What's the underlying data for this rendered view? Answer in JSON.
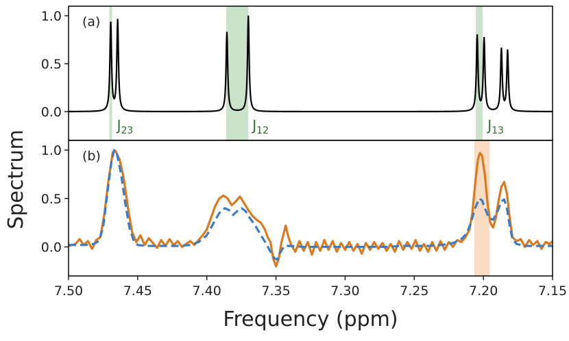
{
  "chart_data": {
    "type": "line",
    "xlabel": "Frequency (ppm)",
    "ylabel": "Spectrum",
    "xlim": [
      7.5,
      7.15
    ],
    "x_ticks": [
      "7.50",
      "7.45",
      "7.40",
      "7.35",
      "7.30",
      "7.25",
      "7.20",
      "7.15"
    ],
    "x_tick_values": [
      7.5,
      7.45,
      7.4,
      7.35,
      7.3,
      7.25,
      7.2,
      7.15
    ],
    "panels": [
      {
        "label": "(a)",
        "ylim": [
          -0.3,
          1.1
        ],
        "y_ticks": [
          "1.0",
          "0.5",
          "0.0"
        ],
        "y_tick_values": [
          1.0,
          0.5,
          0.0
        ],
        "peak_width": 0.0007,
        "peaks": [
          {
            "x": 7.4695,
            "height": 0.92
          },
          {
            "x": 7.4645,
            "height": 0.95
          },
          {
            "x": 7.3855,
            "height": 0.83
          },
          {
            "x": 7.37,
            "height": 1.0
          },
          {
            "x": 7.2045,
            "height": 0.79
          },
          {
            "x": 7.1995,
            "height": 0.76
          },
          {
            "x": 7.187,
            "height": 0.65
          },
          {
            "x": 7.1825,
            "height": 0.63
          }
        ],
        "series_color": "#000000",
        "bands": [
          {
            "from": 7.4705,
            "to": 7.4685,
            "label": "J",
            "sub": "23",
            "label_x": 7.465
          },
          {
            "from": 7.386,
            "to": 7.37,
            "label": "J",
            "sub": "12",
            "label_x": 7.367
          },
          {
            "from": 7.2055,
            "to": 7.2005,
            "label": "J",
            "sub": "13",
            "label_x": 7.197
          }
        ],
        "band_color": "#2e8b2e",
        "label_color": "#2d6e2d"
      },
      {
        "label": "(b)",
        "ylim": [
          -0.3,
          1.1
        ],
        "y_ticks": [
          "1.0",
          "0.5",
          "0.0"
        ],
        "y_tick_values": [
          1.0,
          0.5,
          0.0
        ],
        "series": [
          {
            "style": "solid",
            "color": "#d97a1f",
            "points": [
              [
                7.5,
                0.01
              ],
              [
                7.495,
                0.03
              ],
              [
                7.492,
                0.08
              ],
              [
                7.489,
                0.02
              ],
              [
                7.486,
                0.06
              ],
              [
                7.483,
                -0.02
              ],
              [
                7.48,
                0.07
              ],
              [
                7.477,
                0.1
              ],
              [
                7.474,
                0.35
              ],
              [
                7.471,
                0.7
              ],
              [
                7.468,
                0.98
              ],
              [
                7.466,
                0.99
              ],
              [
                7.463,
                0.9
              ],
              [
                7.46,
                0.7
              ],
              [
                7.457,
                0.4
              ],
              [
                7.454,
                0.15
              ],
              [
                7.451,
                0.05
              ],
              [
                7.448,
                0.12
              ],
              [
                7.445,
                0.02
              ],
              [
                7.442,
                0.09
              ],
              [
                7.439,
                0.04
              ],
              [
                7.436,
                -0.01
              ],
              [
                7.433,
                0.07
              ],
              [
                7.43,
                0.01
              ],
              [
                7.427,
                0.08
              ],
              [
                7.424,
                0.02
              ],
              [
                7.421,
                0.06
              ],
              [
                7.418,
                0.0
              ],
              [
                7.415,
                0.03
              ],
              [
                7.412,
                0.06
              ],
              [
                7.409,
                0.02
              ],
              [
                7.406,
                0.07
              ],
              [
                7.403,
                0.12
              ],
              [
                7.4,
                0.18
              ],
              [
                7.397,
                0.3
              ],
              [
                7.394,
                0.42
              ],
              [
                7.391,
                0.5
              ],
              [
                7.388,
                0.53
              ],
              [
                7.385,
                0.5
              ],
              [
                7.382,
                0.43
              ],
              [
                7.379,
                0.47
              ],
              [
                7.376,
                0.52
              ],
              [
                7.373,
                0.45
              ],
              [
                7.37,
                0.38
              ],
              [
                7.367,
                0.32
              ],
              [
                7.364,
                0.28
              ],
              [
                7.361,
                0.25
              ],
              [
                7.358,
                0.18
              ],
              [
                7.356,
                0.1
              ],
              [
                7.354,
                0.05
              ],
              [
                7.352,
                -0.12
              ],
              [
                7.35,
                -0.2
              ],
              [
                7.348,
                -0.12
              ],
              [
                7.346,
                0.05
              ],
              [
                7.343,
                0.22
              ],
              [
                7.341,
                0.1
              ],
              [
                7.339,
                0.02
              ],
              [
                7.336,
                -0.05
              ],
              [
                7.333,
                0.06
              ],
              [
                7.33,
                -0.04
              ],
              [
                7.327,
                0.05
              ],
              [
                7.324,
                -0.08
              ],
              [
                7.321,
                0.05
              ],
              [
                7.318,
                -0.04
              ],
              [
                7.315,
                0.07
              ],
              [
                7.312,
                -0.03
              ],
              [
                7.309,
                0.06
              ],
              [
                7.306,
                -0.05
              ],
              [
                7.303,
                0.04
              ],
              [
                7.3,
                -0.03
              ],
              [
                7.297,
                0.05
              ],
              [
                7.294,
                -0.04
              ],
              [
                7.291,
                0.03
              ],
              [
                7.288,
                -0.07
              ],
              [
                7.285,
                0.04
              ],
              [
                7.282,
                -0.03
              ],
              [
                7.279,
                0.05
              ],
              [
                7.276,
                -0.02
              ],
              [
                7.273,
                0.04
              ],
              [
                7.27,
                -0.04
              ],
              [
                7.267,
                0.03
              ],
              [
                7.264,
                -0.05
              ],
              [
                7.261,
                0.06
              ],
              [
                7.258,
                -0.03
              ],
              [
                7.255,
                0.05
              ],
              [
                7.252,
                -0.02
              ],
              [
                7.249,
                0.07
              ],
              [
                7.246,
                -0.04
              ],
              [
                7.243,
                0.03
              ],
              [
                7.24,
                -0.05
              ],
              [
                7.237,
                0.05
              ],
              [
                7.234,
                -0.04
              ],
              [
                7.231,
                0.06
              ],
              [
                7.228,
                -0.03
              ],
              [
                7.225,
                0.05
              ],
              [
                7.222,
                0.0
              ],
              [
                7.219,
                0.07
              ],
              [
                7.216,
                0.05
              ],
              [
                7.213,
                0.1
              ],
              [
                7.21,
                0.18
              ],
              [
                7.208,
                0.35
              ],
              [
                7.206,
                0.65
              ],
              [
                7.204,
                0.9
              ],
              [
                7.2025,
                0.97
              ],
              [
                7.201,
                0.94
              ],
              [
                7.199,
                0.75
              ],
              [
                7.197,
                0.45
              ],
              [
                7.195,
                0.25
              ],
              [
                7.193,
                0.2
              ],
              [
                7.191,
                0.3
              ],
              [
                7.189,
                0.48
              ],
              [
                7.187,
                0.62
              ],
              [
                7.185,
                0.67
              ],
              [
                7.183,
                0.55
              ],
              [
                7.181,
                0.3
              ],
              [
                7.179,
                0.1
              ],
              [
                7.176,
                0.06
              ],
              [
                7.173,
                0.08
              ],
              [
                7.17,
                0.0
              ],
              [
                7.167,
                0.07
              ],
              [
                7.164,
                0.02
              ],
              [
                7.161,
                0.06
              ],
              [
                7.158,
                -0.02
              ],
              [
                7.155,
                0.05
              ],
              [
                7.152,
                0.03
              ],
              [
                7.15,
                0.06
              ]
            ]
          },
          {
            "style": "dashed",
            "color": "#3d7cc4",
            "points": [
              [
                7.5,
                0.02
              ],
              [
                7.494,
                0.02
              ],
              [
                7.488,
                0.02
              ],
              [
                7.482,
                0.03
              ],
              [
                7.478,
                0.06
              ],
              [
                7.475,
                0.2
              ],
              [
                7.472,
                0.55
              ],
              [
                7.469,
                0.88
              ],
              [
                7.467,
                1.0
              ],
              [
                7.465,
                0.96
              ],
              [
                7.462,
                0.75
              ],
              [
                7.459,
                0.45
              ],
              [
                7.456,
                0.2
              ],
              [
                7.453,
                0.07
              ],
              [
                7.45,
                0.02
              ],
              [
                7.444,
                0.01
              ],
              [
                7.436,
                0.01
              ],
              [
                7.428,
                0.01
              ],
              [
                7.42,
                0.01
              ],
              [
                7.412,
                0.02
              ],
              [
                7.406,
                0.05
              ],
              [
                7.4,
                0.12
              ],
              [
                7.395,
                0.25
              ],
              [
                7.391,
                0.35
              ],
              [
                7.387,
                0.4
              ],
              [
                7.384,
                0.38
              ],
              [
                7.381,
                0.33
              ],
              [
                7.378,
                0.37
              ],
              [
                7.375,
                0.4
              ],
              [
                7.372,
                0.37
              ],
              [
                7.369,
                0.3
              ],
              [
                7.365,
                0.22
              ],
              [
                7.36,
                0.1
              ],
              [
                7.357,
                0.03
              ],
              [
                7.354,
                -0.05
              ],
              [
                7.351,
                -0.12
              ],
              [
                7.349,
                -0.13
              ],
              [
                7.347,
                -0.06
              ],
              [
                7.344,
                0.01
              ],
              [
                7.34,
                0.01
              ],
              [
                7.33,
                0.0
              ],
              [
                7.32,
                0.0
              ],
              [
                7.31,
                0.0
              ],
              [
                7.3,
                0.0
              ],
              [
                7.29,
                0.0
              ],
              [
                7.28,
                0.0
              ],
              [
                7.27,
                0.0
              ],
              [
                7.26,
                0.01
              ],
              [
                7.25,
                0.01
              ],
              [
                7.24,
                0.01
              ],
              [
                7.23,
                0.02
              ],
              [
                7.222,
                0.04
              ],
              [
                7.216,
                0.08
              ],
              [
                7.212,
                0.14
              ],
              [
                7.209,
                0.25
              ],
              [
                7.206,
                0.4
              ],
              [
                7.203,
                0.5
              ],
              [
                7.201,
                0.48
              ],
              [
                7.199,
                0.4
              ],
              [
                7.196,
                0.3
              ],
              [
                7.193,
                0.28
              ],
              [
                7.19,
                0.36
              ],
              [
                7.187,
                0.47
              ],
              [
                7.185,
                0.49
              ],
              [
                7.183,
                0.4
              ],
              [
                7.181,
                0.22
              ],
              [
                7.179,
                0.08
              ],
              [
                7.176,
                0.03
              ],
              [
                7.17,
                0.01
              ],
              [
                7.16,
                0.01
              ],
              [
                7.15,
                0.01
              ]
            ]
          }
        ],
        "bands": [
          {
            "from": 7.2065,
            "to": 7.1955
          }
        ],
        "band_color": "#f0a868"
      }
    ]
  }
}
